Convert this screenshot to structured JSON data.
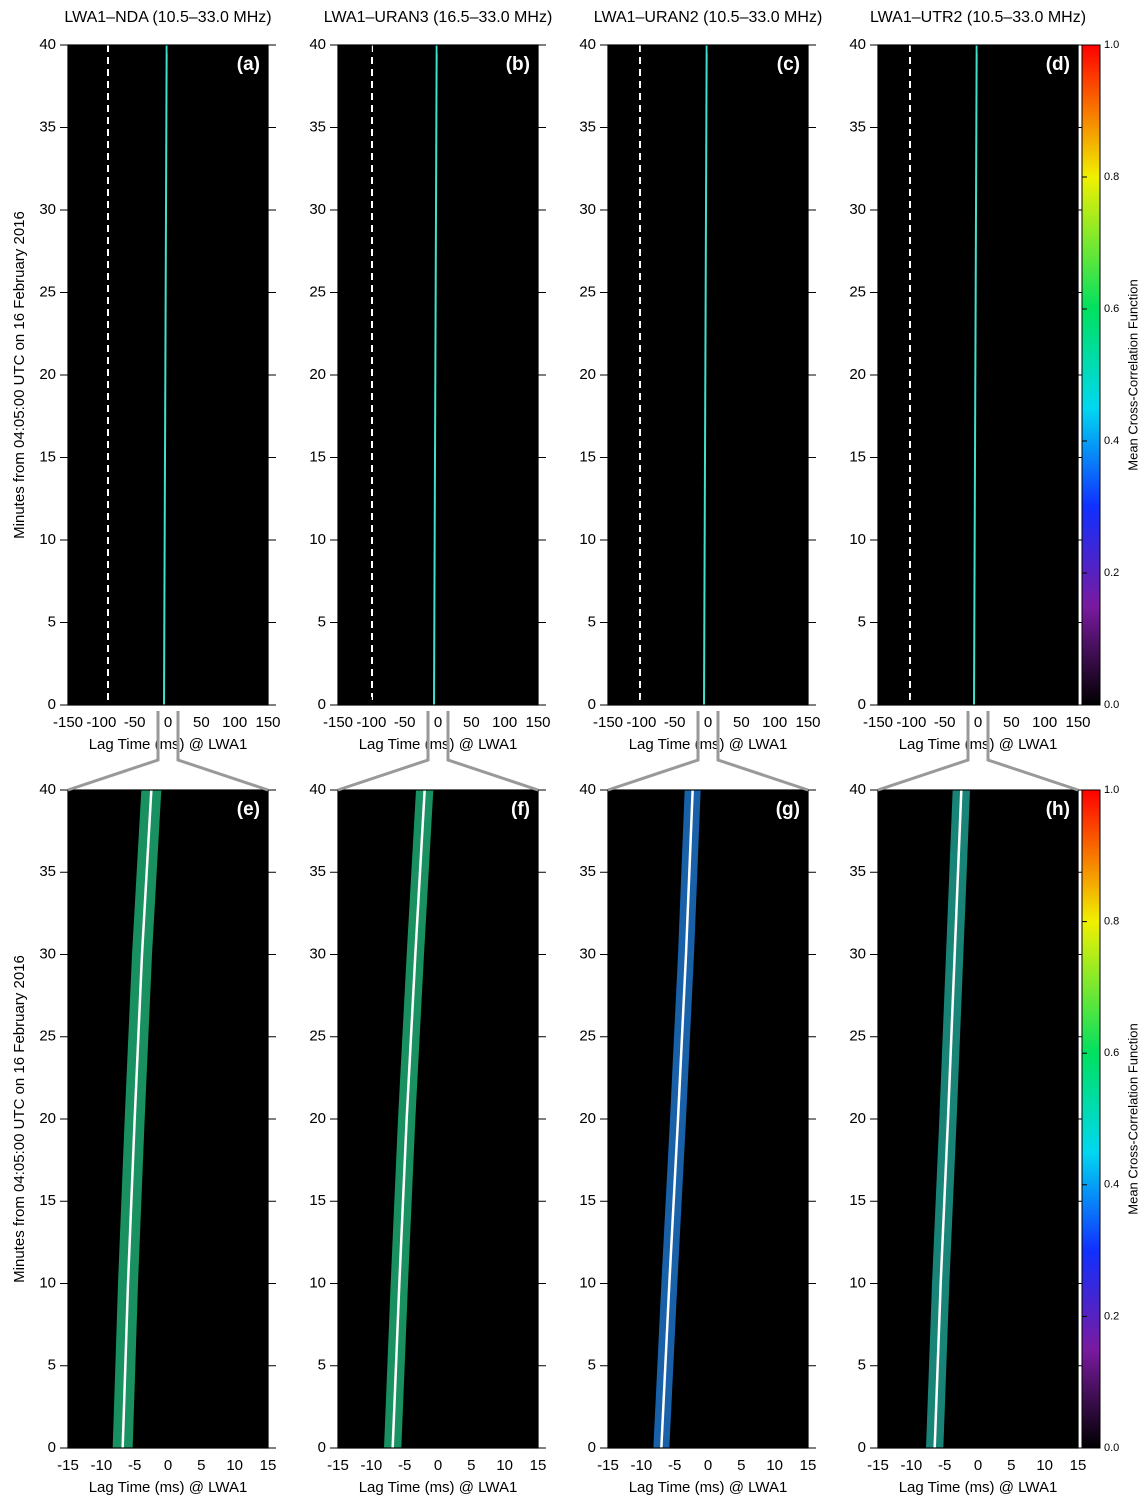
{
  "chart_data": [
    {
      "type": "heatmap",
      "title": "LWA1–NDA (10.5–33.0 MHz)",
      "panel_label": "(a)",
      "xlabel": "Lag Time (ms) @ LWA1",
      "ylabel": "Minutes from 04:05:00 UTC on 16 February 2016",
      "xlim": [
        -150,
        150
      ],
      "xticks": [
        -150,
        -100,
        -50,
        0,
        50,
        100,
        150
      ],
      "ylim": [
        0,
        40
      ],
      "yticks": [
        0,
        5,
        10,
        15,
        20,
        25,
        30,
        35,
        40
      ],
      "y": [
        0,
        40
      ],
      "series": [
        {
          "color": "#40e0d0",
          "values": [
            -6,
            -2
          ]
        }
      ],
      "reference_line": {
        "value": -90,
        "color": "#ffffff"
      }
    },
    {
      "type": "heatmap",
      "title": "LWA1–URAN3 (16.5–33.0 MHz)",
      "panel_label": "(b)",
      "xlabel": "Lag Time (ms) @ LWA1",
      "xlim": [
        -150,
        150
      ],
      "xticks": [
        -150,
        -100,
        -50,
        0,
        50,
        100,
        150
      ],
      "ylim": [
        0,
        40
      ],
      "yticks": [
        0,
        5,
        10,
        15,
        20,
        25,
        30,
        35,
        40
      ],
      "y": [
        0,
        40
      ],
      "series": [
        {
          "color": "#40e0d0",
          "values": [
            -6,
            -2
          ]
        }
      ],
      "reference_line": {
        "value": -99,
        "color": "#ffffff"
      }
    },
    {
      "type": "heatmap",
      "title": "LWA1–URAN2 (10.5–33.0 MHz)",
      "panel_label": "(c)",
      "xlabel": "Lag Time (ms) @ LWA1",
      "xlim": [
        -150,
        150
      ],
      "xticks": [
        -150,
        -100,
        -50,
        0,
        50,
        100,
        150
      ],
      "ylim": [
        0,
        40
      ],
      "yticks": [
        0,
        5,
        10,
        15,
        20,
        25,
        30,
        35,
        40
      ],
      "y": [
        0,
        40
      ],
      "series": [
        {
          "color": "#40e0d0",
          "values": [
            -6,
            -2
          ]
        }
      ],
      "reference_line": {
        "value": -102,
        "color": "#ffffff"
      }
    },
    {
      "type": "heatmap",
      "title": "LWA1–UTR2 (10.5–33.0 MHz)",
      "panel_label": "(d)",
      "xlabel": "Lag Time (ms) @ LWA1",
      "xlim": [
        -150,
        150
      ],
      "xticks": [
        -150,
        -100,
        -50,
        0,
        50,
        100,
        150
      ],
      "ylim": [
        0,
        40
      ],
      "yticks": [
        0,
        5,
        10,
        15,
        20,
        25,
        30,
        35,
        40
      ],
      "y": [
        0,
        40
      ],
      "series": [
        {
          "color": "#40e0d0",
          "values": [
            -6,
            -2
          ]
        }
      ],
      "reference_line": {
        "value": -102,
        "color": "#ffffff"
      },
      "colorbar": {
        "label": "Mean Cross-Correlation Function",
        "lim": [
          0,
          1
        ],
        "ticks": [
          {
            "value": 0,
            "label": "0.0"
          },
          {
            "value": 0.2,
            "label": "0.2"
          },
          {
            "value": 0.4,
            "label": "0.4"
          },
          {
            "value": 0.6,
            "label": "0.6"
          },
          {
            "value": 0.8,
            "label": "0.8"
          },
          {
            "value": 1,
            "label": "1.0"
          }
        ]
      }
    },
    {
      "type": "heatmap",
      "panel_label": "(e)",
      "xlabel": "Lag Time (ms) @ LWA1",
      "ylabel": "Minutes from 04:05:00 UTC on 16 February 2016",
      "xlim": [
        -15,
        15
      ],
      "xticks": [
        -15,
        -10,
        -5,
        0,
        5,
        10,
        15
      ],
      "ylim": [
        0,
        40
      ],
      "yticks": [
        0,
        5,
        10,
        15,
        20,
        25,
        30,
        35,
        40
      ],
      "y": [
        0,
        10,
        20,
        30,
        40
      ],
      "series": [
        {
          "color": "#ffffff",
          "values": [
            -6.8,
            -6,
            -5,
            -3.9,
            -2.5
          ]
        }
      ],
      "band_color": "#20c080",
      "band_halfwidth": 1.5
    },
    {
      "type": "heatmap",
      "panel_label": "(f)",
      "xlabel": "Lag Time (ms) @ LWA1",
      "xlim": [
        -15,
        15
      ],
      "xticks": [
        -15,
        -10,
        -5,
        0,
        5,
        10,
        15
      ],
      "ylim": [
        0,
        40
      ],
      "yticks": [
        0,
        5,
        10,
        15,
        20,
        25,
        30,
        35,
        40
      ],
      "y": [
        0,
        10,
        20,
        30,
        40
      ],
      "series": [
        {
          "color": "#ffffff",
          "values": [
            -6.8,
            -5.8,
            -4.7,
            -3.4,
            -2
          ]
        }
      ],
      "band_color": "#20c080",
      "band_halfwidth": 1.3
    },
    {
      "type": "heatmap",
      "panel_label": "(g)",
      "xlabel": "Lag Time (ms) @ LWA1",
      "xlim": [
        -15,
        15
      ],
      "xticks": [
        -15,
        -10,
        -5,
        0,
        5,
        10,
        15
      ],
      "ylim": [
        0,
        40
      ],
      "yticks": [
        0,
        5,
        10,
        15,
        20,
        25,
        30,
        35,
        40
      ],
      "y": [
        0,
        10,
        20,
        30,
        40
      ],
      "series": [
        {
          "color": "#ffffff",
          "values": [
            -7,
            -5.8,
            -4.5,
            -3.3,
            -2.3
          ]
        }
      ],
      "band_color": "#2080e0",
      "band_halfwidth": 1.2
    },
    {
      "type": "heatmap",
      "panel_label": "(h)",
      "xlabel": "Lag Time (ms) @ LWA1",
      "xlim": [
        -15,
        15
      ],
      "xticks": [
        -15,
        -10,
        -5,
        0,
        5,
        10,
        15
      ],
      "ylim": [
        0,
        40
      ],
      "yticks": [
        0,
        5,
        10,
        15,
        20,
        25,
        30,
        35,
        40
      ],
      "y": [
        0,
        10,
        20,
        30,
        40
      ],
      "series": [
        {
          "color": "#ffffff",
          "values": [
            -6.5,
            -5.6,
            -4.5,
            -3.5,
            -2.5
          ]
        }
      ],
      "band_color": "#20b0a0",
      "band_halfwidth": 1.3,
      "colorbar": {
        "label": "Mean Cross-Correlation Function",
        "lim": [
          0,
          1
        ],
        "ticks": [
          {
            "value": 0,
            "label": "0.0"
          },
          {
            "value": 0.2,
            "label": "0.2"
          },
          {
            "value": 0.4,
            "label": "0.4"
          },
          {
            "value": 0.6,
            "label": "0.6"
          },
          {
            "value": 0.8,
            "label": "0.8"
          },
          {
            "value": 1,
            "label": "1.0"
          }
        ]
      }
    }
  ]
}
